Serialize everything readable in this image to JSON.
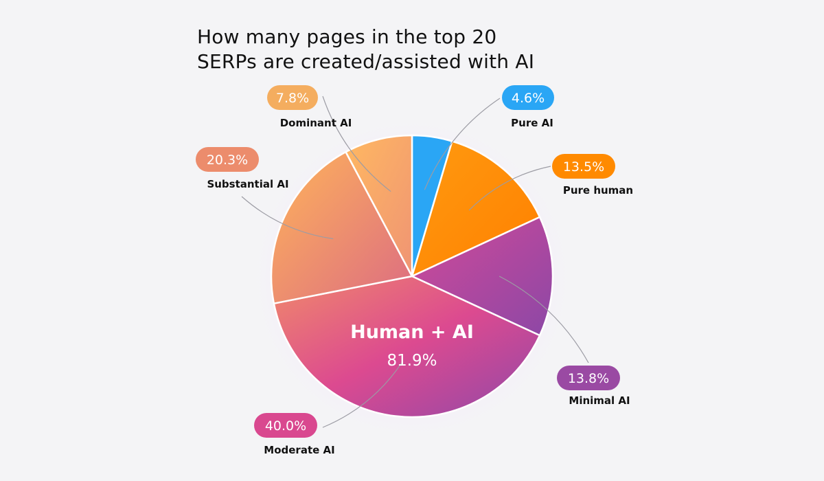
{
  "title_lines": [
    "How many pages in the top 20",
    "SERPs are created/assisted with AI"
  ],
  "chart_data": {
    "type": "pie",
    "title": "How many pages in the top 20 SERPs are created/assisted with AI",
    "slices": [
      {
        "label": "Pure AI",
        "value": 4.6,
        "value_label": "4.6%",
        "color": "#2aa6f5"
      },
      {
        "label": "Pure human",
        "value": 13.5,
        "value_label": "13.5%",
        "color": "#ff8a00"
      },
      {
        "label": "Minimal AI",
        "value": 13.8,
        "value_label": "13.8%",
        "color": "#9a4aa3"
      },
      {
        "label": "Moderate AI",
        "value": 40.0,
        "value_label": "40.0%",
        "color": "#d9488f"
      },
      {
        "label": "Substantial AI",
        "value": 20.3,
        "value_label": "20.3%",
        "color": "#ec8c6c"
      },
      {
        "label": "Dominant AI",
        "value": 7.8,
        "value_label": "7.8%",
        "color": "#f4ad5f"
      }
    ],
    "center_label": {
      "title": "Human + AI",
      "value": "81.9%"
    }
  }
}
